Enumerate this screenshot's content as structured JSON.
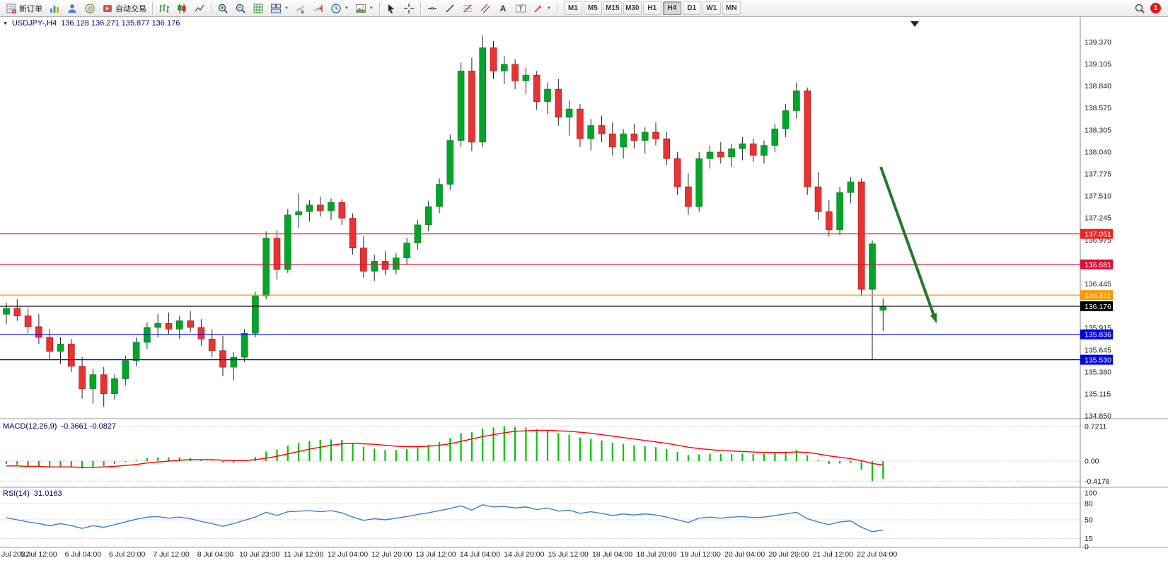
{
  "toolbar": {
    "new_order_label": "新订单",
    "autotrading_label": "自动交易",
    "timeframes": [
      "M1",
      "M5",
      "M15",
      "M30",
      "H1",
      "H4",
      "D1",
      "W1",
      "MN"
    ],
    "active_timeframe": "H4",
    "notification_count": "1"
  },
  "chart": {
    "title": "USDJPY-,H4",
    "ohlc": "136.128 136.271 135.877 136.176"
  },
  "chart_data": {
    "type": "candlestick",
    "symbol": "USDJPY-",
    "timeframe": "H4",
    "current_bar": {
      "open": 136.128,
      "high": 136.271,
      "low": 135.877,
      "close": 136.176
    },
    "up_color": "#00a629",
    "down_color": "#e93232",
    "price_axis_labels": [
      "139.370",
      "139.105",
      "138.840",
      "138.575",
      "138.305",
      "138.040",
      "137.775",
      "137.510",
      "137.245",
      "136.975",
      "136.445",
      "135.915",
      "135.645",
      "135.380",
      "135.115",
      "134.850"
    ],
    "levels": [
      {
        "value": 137.051,
        "label": "137.051",
        "color": "#f02222"
      },
      {
        "value": 136.681,
        "label": "136.681",
        "color": "#d8103a"
      },
      {
        "value": 136.311,
        "label": "136.311",
        "color": "#ff9800"
      },
      {
        "value": 136.176,
        "label": "136.176",
        "color": "#000000"
      },
      {
        "value": 135.836,
        "label": "135.836",
        "color": "#0000e8"
      },
      {
        "value": 135.53,
        "label": "135.530",
        "color": "#0000e8"
      }
    ],
    "time_labels": [
      "Jul 2022",
      "5 Jul 12:00",
      "6 Jul 04:00",
      "6 Jul 20:00",
      "7 Jul 12:00",
      "8 Jul 04:00",
      "10 Jul 23:00",
      "11 Jul 12:00",
      "12 Jul 04:00",
      "12 Jul 20:00",
      "13 Jul 12:00",
      "14 Jul 04:00",
      "14 Jul 20:00",
      "15 Jul 12:00",
      "18 Jul 04:00",
      "18 Jul 20:00",
      "19 Jul 12:00",
      "20 Jul 04:00",
      "20 Jul 20:00",
      "21 Jul 12:00",
      "22 Jul 04:00"
    ],
    "candles": [
      [
        136.08,
        136.22,
        135.96,
        136.15
      ],
      [
        136.15,
        136.26,
        136.0,
        136.06
      ],
      [
        136.06,
        136.15,
        135.85,
        135.93
      ],
      [
        135.93,
        136.08,
        135.72,
        135.8
      ],
      [
        135.8,
        135.9,
        135.54,
        135.63
      ],
      [
        135.63,
        135.8,
        135.48,
        135.72
      ],
      [
        135.72,
        135.78,
        135.38,
        135.45
      ],
      [
        135.45,
        135.56,
        135.06,
        135.18
      ],
      [
        135.18,
        135.42,
        135.0,
        135.35
      ],
      [
        135.35,
        135.44,
        134.96,
        135.12
      ],
      [
        135.12,
        135.35,
        135.05,
        135.3
      ],
      [
        135.3,
        135.58,
        135.22,
        135.52
      ],
      [
        135.52,
        135.8,
        135.45,
        135.74
      ],
      [
        135.74,
        135.98,
        135.66,
        135.92
      ],
      [
        135.92,
        136.08,
        135.8,
        135.97
      ],
      [
        135.97,
        136.1,
        135.84,
        135.9
      ],
      [
        135.9,
        136.06,
        135.78,
        136.0
      ],
      [
        136.0,
        136.12,
        135.86,
        135.92
      ],
      [
        135.92,
        136.02,
        135.7,
        135.78
      ],
      [
        135.78,
        135.9,
        135.56,
        135.64
      ],
      [
        135.64,
        135.82,
        135.33,
        135.44
      ],
      [
        135.44,
        135.62,
        135.28,
        135.56
      ],
      [
        135.56,
        135.9,
        135.5,
        135.85
      ],
      [
        135.85,
        136.35,
        135.8,
        136.3
      ],
      [
        136.3,
        137.08,
        136.26,
        137.0
      ],
      [
        137.0,
        137.1,
        136.5,
        136.62
      ],
      [
        136.62,
        137.35,
        136.58,
        137.28
      ],
      [
        137.28,
        137.54,
        137.12,
        137.32
      ],
      [
        137.32,
        137.46,
        137.2,
        137.4
      ],
      [
        137.4,
        137.5,
        137.26,
        137.33
      ],
      [
        137.33,
        137.48,
        137.22,
        137.43
      ],
      [
        137.43,
        137.47,
        137.16,
        137.24
      ],
      [
        137.24,
        137.3,
        136.8,
        136.88
      ],
      [
        136.88,
        137.02,
        136.52,
        136.6
      ],
      [
        136.6,
        136.8,
        136.48,
        136.72
      ],
      [
        136.72,
        136.84,
        136.55,
        136.62
      ],
      [
        136.62,
        136.82,
        136.56,
        136.76
      ],
      [
        136.76,
        137.0,
        136.68,
        136.94
      ],
      [
        136.94,
        137.22,
        136.86,
        137.16
      ],
      [
        137.16,
        137.45,
        137.08,
        137.38
      ],
      [
        137.38,
        137.72,
        137.3,
        137.65
      ],
      [
        137.65,
        138.25,
        137.58,
        138.18
      ],
      [
        138.18,
        139.12,
        138.1,
        139.02
      ],
      [
        139.02,
        139.18,
        138.05,
        138.16
      ],
      [
        138.16,
        139.45,
        138.1,
        139.3
      ],
      [
        139.3,
        139.38,
        138.92,
        139.02
      ],
      [
        139.02,
        139.2,
        138.86,
        139.1
      ],
      [
        139.1,
        139.16,
        138.8,
        138.9
      ],
      [
        138.9,
        139.06,
        138.74,
        138.97
      ],
      [
        138.97,
        139.02,
        138.55,
        138.65
      ],
      [
        138.65,
        138.88,
        138.5,
        138.8
      ],
      [
        138.8,
        138.92,
        138.36,
        138.46
      ],
      [
        138.46,
        138.66,
        138.24,
        138.56
      ],
      [
        138.56,
        138.62,
        138.1,
        138.2
      ],
      [
        138.2,
        138.44,
        138.06,
        138.36
      ],
      [
        138.36,
        138.48,
        138.16,
        138.26
      ],
      [
        138.26,
        138.4,
        138.0,
        138.1
      ],
      [
        138.1,
        138.32,
        137.96,
        138.26
      ],
      [
        138.26,
        138.38,
        138.08,
        138.18
      ],
      [
        138.18,
        138.34,
        138.02,
        138.28
      ],
      [
        138.28,
        138.4,
        138.12,
        138.2
      ],
      [
        138.2,
        138.28,
        137.88,
        137.96
      ],
      [
        137.96,
        138.04,
        137.52,
        137.62
      ],
      [
        137.62,
        137.78,
        137.28,
        137.38
      ],
      [
        137.38,
        138.04,
        137.32,
        137.96
      ],
      [
        137.96,
        138.12,
        137.84,
        138.04
      ],
      [
        138.04,
        138.16,
        137.9,
        137.98
      ],
      [
        137.98,
        138.14,
        137.86,
        138.08
      ],
      [
        138.08,
        138.22,
        137.94,
        138.14
      ],
      [
        138.14,
        138.2,
        137.92,
        138.0
      ],
      [
        138.0,
        138.18,
        137.9,
        138.12
      ],
      [
        138.12,
        138.38,
        138.04,
        138.32
      ],
      [
        138.32,
        138.62,
        138.22,
        138.54
      ],
      [
        138.54,
        138.88,
        138.44,
        138.78
      ],
      [
        138.78,
        138.82,
        137.52,
        137.62
      ],
      [
        137.62,
        137.8,
        137.22,
        137.32
      ],
      [
        137.32,
        137.46,
        137.02,
        137.1
      ],
      [
        137.1,
        137.62,
        137.04,
        137.55
      ],
      [
        137.55,
        137.74,
        137.42,
        137.68
      ],
      [
        137.68,
        137.72,
        136.3,
        136.38
      ],
      [
        136.38,
        136.97,
        135.53,
        136.93
      ],
      [
        136.128,
        136.271,
        135.877,
        136.176
      ]
    ],
    "indicators": {
      "macd": {
        "name": "MACD(12,26,9)",
        "values_text": "-0.3661 -0.0827",
        "axis_labels": [
          "0.7211",
          "0.00",
          "-0.4178"
        ],
        "histogram_color": "#00c400",
        "signal_color": "#ff0000",
        "histogram": [
          -0.06,
          -0.08,
          -0.1,
          -0.12,
          -0.14,
          -0.12,
          -0.13,
          -0.15,
          -0.12,
          -0.1,
          -0.06,
          -0.02,
          0.02,
          0.06,
          0.08,
          0.08,
          0.08,
          0.07,
          0.04,
          0.01,
          -0.03,
          -0.03,
          0.02,
          0.09,
          0.2,
          0.24,
          0.32,
          0.38,
          0.42,
          0.44,
          0.45,
          0.44,
          0.38,
          0.3,
          0.26,
          0.23,
          0.23,
          0.25,
          0.29,
          0.34,
          0.4,
          0.48,
          0.58,
          0.6,
          0.68,
          0.7,
          0.72,
          0.71,
          0.7,
          0.66,
          0.64,
          0.58,
          0.55,
          0.49,
          0.46,
          0.43,
          0.38,
          0.36,
          0.33,
          0.31,
          0.29,
          0.25,
          0.19,
          0.13,
          0.14,
          0.15,
          0.15,
          0.15,
          0.16,
          0.15,
          0.15,
          0.17,
          0.2,
          0.23,
          0.12,
          0.02,
          -0.06,
          -0.05,
          -0.04,
          -0.18,
          -0.42,
          -0.37
        ],
        "signal": [
          -0.1,
          -0.1,
          -0.11,
          -0.11,
          -0.12,
          -0.12,
          -0.12,
          -0.13,
          -0.13,
          -0.12,
          -0.11,
          -0.09,
          -0.07,
          -0.04,
          -0.02,
          0.0,
          0.02,
          0.03,
          0.03,
          0.03,
          0.02,
          0.01,
          0.01,
          0.03,
          0.06,
          0.1,
          0.15,
          0.2,
          0.25,
          0.29,
          0.33,
          0.36,
          0.37,
          0.36,
          0.35,
          0.33,
          0.31,
          0.3,
          0.3,
          0.31,
          0.33,
          0.36,
          0.41,
          0.46,
          0.51,
          0.55,
          0.59,
          0.62,
          0.63,
          0.64,
          0.64,
          0.63,
          0.62,
          0.6,
          0.58,
          0.55,
          0.52,
          0.49,
          0.46,
          0.43,
          0.4,
          0.37,
          0.33,
          0.29,
          0.26,
          0.24,
          0.22,
          0.21,
          0.2,
          0.19,
          0.18,
          0.18,
          0.18,
          0.19,
          0.18,
          0.15,
          0.11,
          0.08,
          0.05,
          0.01,
          -0.05,
          -0.08
        ]
      },
      "rsi": {
        "name": "RSI(14)",
        "value_text": "31.0163",
        "axis_labels": [
          "100",
          "80",
          "50",
          "15",
          "0"
        ],
        "level_lines": [
          80,
          50,
          15
        ],
        "line_color": "#3d7dca",
        "values": [
          54,
          50,
          46,
          43,
          39,
          43,
          39,
          34,
          39,
          36,
          41,
          46,
          51,
          55,
          56,
          53,
          55,
          52,
          47,
          43,
          38,
          43,
          49,
          55,
          64,
          58,
          65,
          66,
          67,
          65,
          67,
          63,
          55,
          49,
          52,
          50,
          53,
          56,
          60,
          63,
          67,
          71,
          76,
          68,
          78,
          74,
          75,
          72,
          74,
          69,
          72,
          66,
          68,
          62,
          65,
          62,
          58,
          61,
          59,
          61,
          59,
          55,
          50,
          45,
          53,
          55,
          53,
          55,
          56,
          54,
          55,
          58,
          61,
          64,
          52,
          46,
          41,
          46,
          48,
          36,
          28,
          31
        ]
      }
    },
    "annotations": [
      {
        "type": "arrow",
        "color": "#207a2a",
        "direction": "down-right"
      }
    ]
  }
}
